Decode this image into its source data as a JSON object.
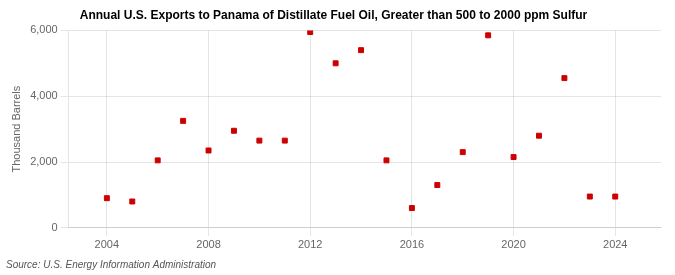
{
  "chart_data": {
    "type": "scatter",
    "title": "Annual U.S. Exports to Panama of Distillate Fuel Oil, Greater than 500 to 2000 ppm Sulfur",
    "ylabel": "Thousand Barrels",
    "annotations": [
      "Source: U.S. Energy Information Administration"
    ],
    "x": [
      2004,
      2005,
      2006,
      2007,
      2008,
      2009,
      2010,
      2011,
      2012,
      2013,
      2014,
      2015,
      2016,
      2017,
      2018,
      2019,
      2020,
      2021,
      2022,
      2023,
      2024
    ],
    "values": [
      900,
      800,
      2050,
      3250,
      2350,
      2950,
      2650,
      2650,
      5950,
      5000,
      5400,
      2050,
      600,
      1300,
      2300,
      5850,
      2150,
      2800,
      4550,
      950,
      950
    ],
    "color": "#cc0000",
    "marker": "square",
    "xlim": [
      2002.5,
      2025.8
    ],
    "xticks": [
      2004,
      2008,
      2012,
      2016,
      2020,
      2024
    ],
    "ylim": [
      0,
      6000
    ],
    "yticks": [
      0,
      {
        "value": 2000,
        "label": "2,000"
      },
      {
        "value": 4000,
        "label": "4,000"
      },
      {
        "value": 6000,
        "label": "6,000"
      }
    ],
    "grid": true
  }
}
